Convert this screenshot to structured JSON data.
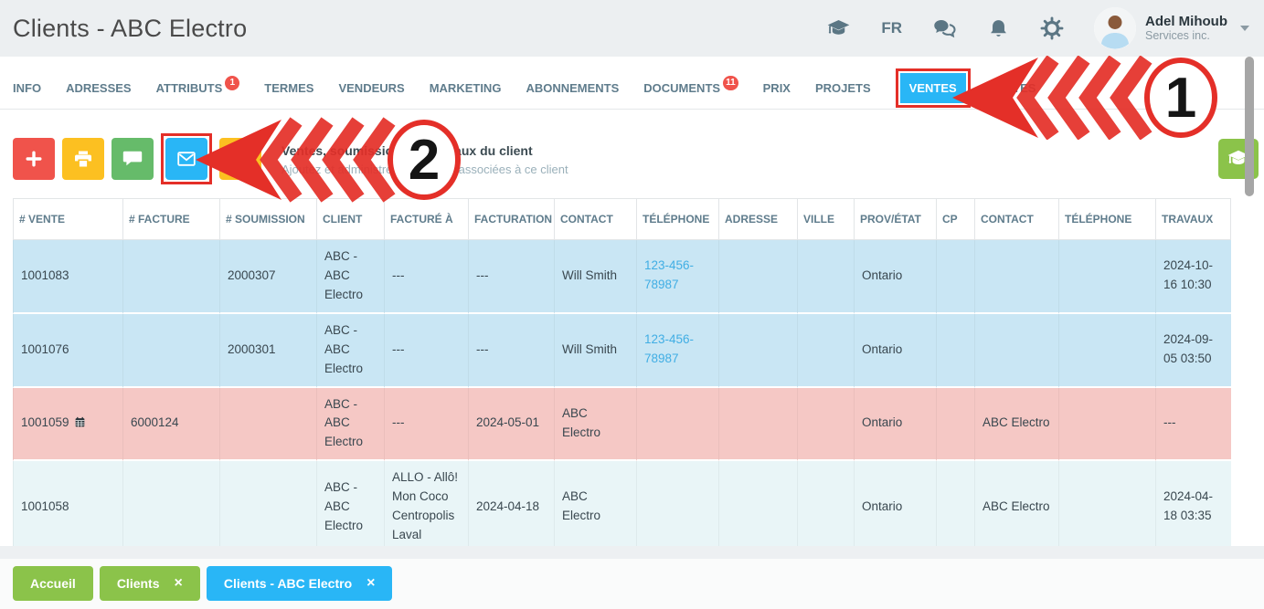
{
  "header": {
    "title": "Clients - ABC Electro",
    "language": "FR",
    "user": {
      "name": "Adel Mihoub",
      "company": "Services inc."
    }
  },
  "tabs": [
    {
      "label": "INFO"
    },
    {
      "label": "ADRESSES"
    },
    {
      "label": "ATTRIBUTS",
      "badge": "1"
    },
    {
      "label": "TERMES"
    },
    {
      "label": "VENDEURS"
    },
    {
      "label": "MARKETING"
    },
    {
      "label": "ABONNEMENTS"
    },
    {
      "label": "DOCUMENTS",
      "badge": "11"
    },
    {
      "label": "PRIX"
    },
    {
      "label": "PROJETS"
    },
    {
      "label": "VENTES",
      "active": true,
      "highlighted": true
    },
    {
      "label": "NOTES"
    }
  ],
  "toolbar": {
    "buttons": [
      {
        "name": "add",
        "icon": "plus-icon",
        "color": "#f0534b"
      },
      {
        "name": "print",
        "icon": "printer-icon",
        "color": "#fcc021"
      },
      {
        "name": "comment",
        "icon": "chat-icon",
        "color": "#66bb6a"
      },
      {
        "name": "email",
        "icon": "mail-icon",
        "color": "#29b6f6",
        "highlighted": true
      },
      {
        "name": "extra",
        "icon": "",
        "color": "#fcc021"
      }
    ],
    "section_title": "Ventes, soumissions ou travaux du client",
    "section_subtitle": "Ajoutez et administrez les ventes associées à ce client"
  },
  "help_button": {
    "icon": "graduation-cap-icon",
    "color": "#8bc34a"
  },
  "table": {
    "columns": [
      "# VENTE",
      "# FACTURE",
      "# SOUMISSION",
      "CLIENT",
      "FACTURÉ À",
      "FACTURATION",
      "CONTACT",
      "TÉLÉPHONE",
      "ADRESSE",
      "VILLE",
      "PROV/ÉTAT",
      "CP",
      "CONTACT",
      "TÉLÉPHONE",
      "TRAVAUX"
    ],
    "rows": [
      {
        "style": "blue",
        "calendar": false,
        "cells": [
          "1001083",
          "",
          "2000307",
          "ABC - ABC Electro",
          "---",
          "---",
          "Will Smith",
          "123-456-78987",
          "",
          "",
          "Ontario",
          "",
          "",
          "",
          "2024-10-16 10:30"
        ]
      },
      {
        "style": "blue",
        "calendar": false,
        "cells": [
          "1001076",
          "",
          "2000301",
          "ABC - ABC Electro",
          "---",
          "---",
          "Will Smith",
          "123-456-78987",
          "",
          "",
          "Ontario",
          "",
          "",
          "",
          "2024-09-05 03:50"
        ]
      },
      {
        "style": "pink",
        "calendar": true,
        "cells": [
          "1001059",
          "6000124",
          "",
          "ABC - ABC Electro",
          "---",
          "2024-05-01",
          "ABC Electro",
          "",
          "",
          "",
          "Ontario",
          "",
          "ABC Electro",
          "",
          "---"
        ]
      },
      {
        "style": "pale",
        "calendar": false,
        "cells": [
          "1001058",
          "",
          "",
          "ABC - ABC Electro",
          "ALLO - Allô! Mon Coco Centropolis Laval",
          "2024-04-18",
          "ABC Electro",
          "",
          "",
          "",
          "Ontario",
          "",
          "ABC Electro",
          "",
          "2024-04-18 03:35"
        ]
      }
    ]
  },
  "annotations": [
    {
      "number": "1"
    },
    {
      "number": "2"
    }
  ],
  "bottom_tabs": [
    {
      "label": "Accueil",
      "closable": false,
      "color": "green"
    },
    {
      "label": "Clients",
      "closable": true,
      "color": "green"
    },
    {
      "label": "Clients - ABC Electro",
      "closable": true,
      "color": "blue"
    }
  ],
  "colors": {
    "accent_blue": "#29b6f6",
    "accent_green": "#8bc34a",
    "annotation_red": "#e42f28",
    "badge_red": "#f0534b",
    "row_blue": "#c9e6f4",
    "row_pink": "#f5c8c5",
    "row_pale": "#e9f5f7",
    "link_blue": "#41aee4"
  }
}
